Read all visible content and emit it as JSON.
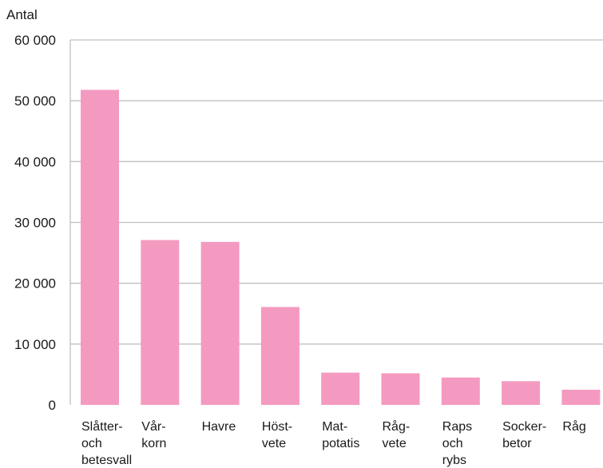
{
  "chart_data": {
    "type": "bar",
    "title": "",
    "ylabel": "Antal",
    "xlabel": "",
    "ylim": [
      0,
      60000
    ],
    "yticks": [
      0,
      10000,
      20000,
      30000,
      40000,
      50000,
      60000
    ],
    "ytick_labels": [
      "0",
      "10 000",
      "20 000",
      "30 000",
      "40 000",
      "50 000",
      "60 000"
    ],
    "grid": true,
    "bar_color": "#f49ac1",
    "grid_color": "#c0c0c0",
    "categories": [
      [
        "Slåtter-",
        "och",
        "betesvall"
      ],
      [
        "Vår-",
        "korn"
      ],
      [
        "Havre"
      ],
      [
        "Höst-",
        "vete"
      ],
      [
        "Mat-",
        "potatis"
      ],
      [
        "Råg-",
        "vete"
      ],
      [
        "Raps",
        "och",
        "rybs"
      ],
      [
        "Socker-",
        "betor"
      ],
      [
        "Råg"
      ]
    ],
    "values": [
      51800,
      27100,
      26800,
      16100,
      5300,
      5200,
      4500,
      3900,
      2500
    ]
  }
}
